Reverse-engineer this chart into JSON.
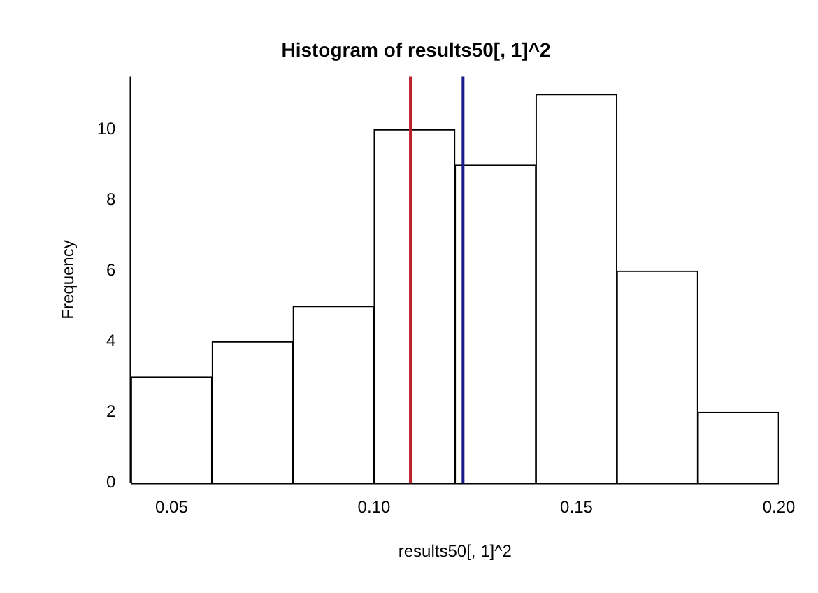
{
  "chart_data": {
    "type": "histogram",
    "title": "Histogram of results50[, 1]^2",
    "xlabel": "results50[, 1]^2",
    "ylabel": "Frequency",
    "bins": [
      0.04,
      0.06,
      0.08,
      0.1,
      0.12,
      0.14,
      0.16,
      0.18,
      0.2
    ],
    "values": [
      3,
      4,
      5,
      10,
      9,
      11,
      6,
      2
    ],
    "color": "#ffffff",
    "xlim": [
      0.04,
      0.2
    ],
    "xticks": [
      {
        "value": 0.05,
        "label": "0.05"
      },
      {
        "value": 0.1,
        "label": "0.10"
      },
      {
        "value": 0.15,
        "label": "0.15"
      },
      {
        "value": 0.2,
        "label": "0.20"
      }
    ],
    "ylim": [
      0,
      11.5
    ],
    "yticks": [
      0,
      2,
      4,
      6,
      8,
      10
    ],
    "grid": false,
    "legend": false,
    "ref_lines": [
      {
        "axis": "x",
        "value": 0.109,
        "color": "#c0202a"
      },
      {
        "axis": "x",
        "value": 0.122,
        "color": "#1a1a8a"
      }
    ]
  }
}
